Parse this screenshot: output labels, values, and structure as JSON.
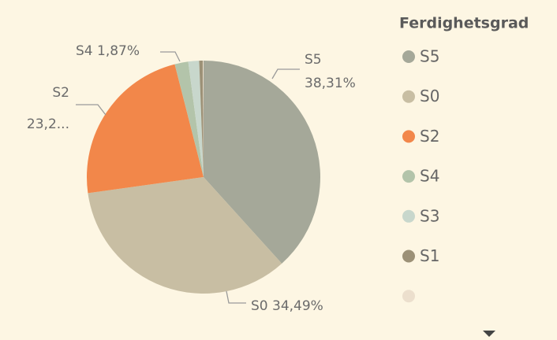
{
  "chart_data": {
    "type": "pie",
    "legend_title": "Ferdighetsgrad",
    "categories": [
      "S5",
      "S0",
      "S2",
      "S4",
      "S3",
      "S1",
      null
    ],
    "values": [
      38.31,
      34.49,
      23.23,
      1.87,
      1.5,
      0.5,
      0.1
    ],
    "value_labels": [
      "38,31%",
      "34,49%",
      "23,2...",
      "1,87%",
      null,
      null,
      null
    ],
    "colors": [
      "#a5a899",
      "#c8bea3",
      "#f2874a",
      "#b3c4aa",
      "#c8d7cc",
      "#9c9177",
      "#ecdfcd"
    ],
    "legend": "right"
  }
}
